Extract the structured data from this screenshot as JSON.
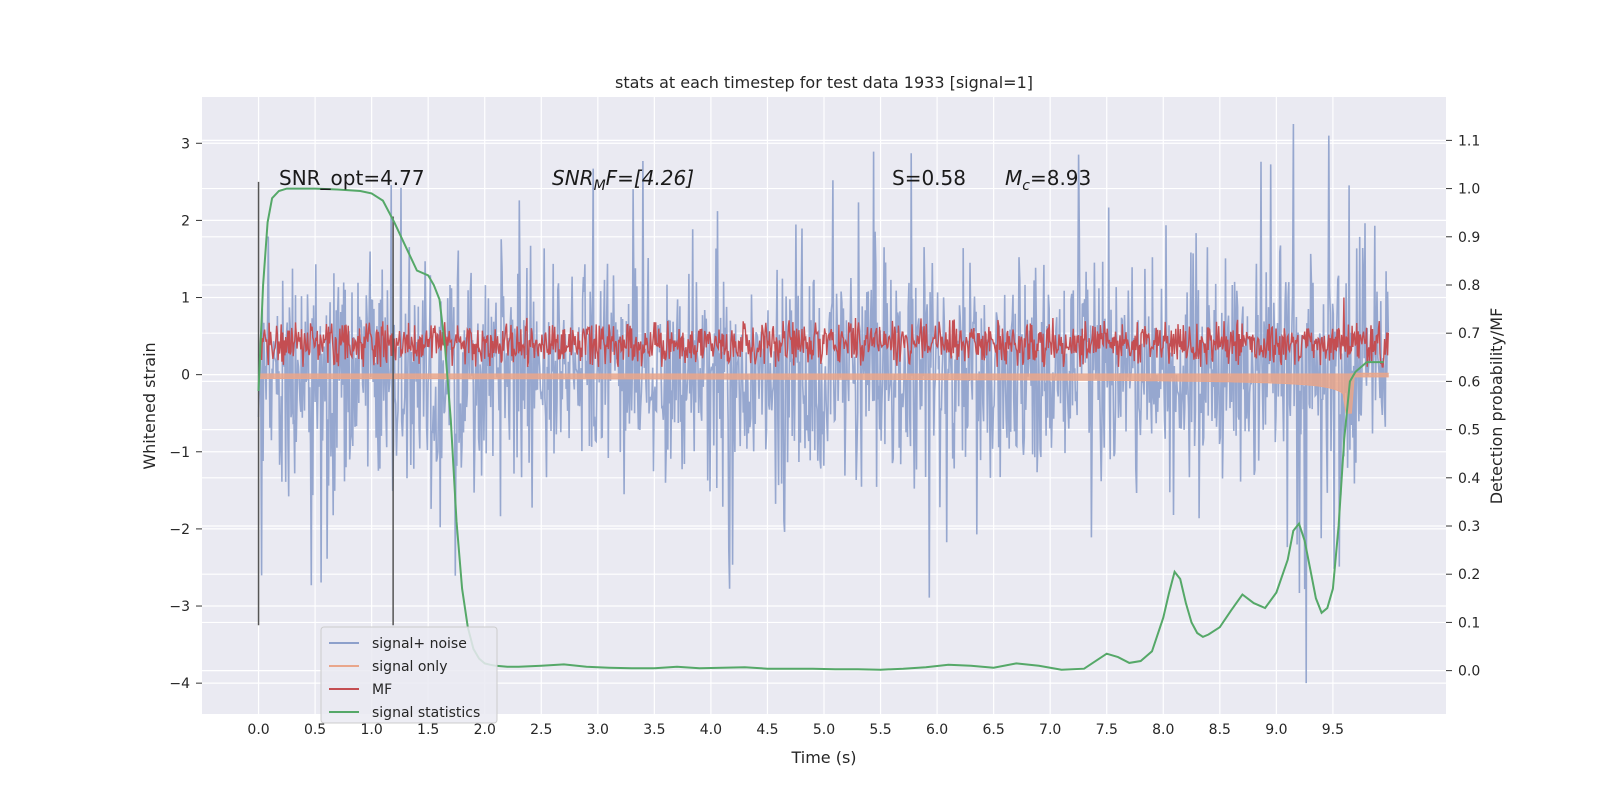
{
  "chart_data": {
    "type": "line",
    "title": "stats at each timestep for test data 1933 [signal=1]",
    "xlabel": "Time (s)",
    "ylabel_left": "Whitened strain",
    "ylabel_right": "Detection probability/MF",
    "xlim": [
      -0.5,
      10.5
    ],
    "ylim_left": [
      -4.4,
      3.6
    ],
    "ylim_right": [
      -0.09,
      1.19
    ],
    "x_ticks": [
      "0.0",
      "0.5",
      "1.0",
      "1.5",
      "2.0",
      "2.5",
      "3.0",
      "3.5",
      "4.0",
      "4.5",
      "5.0",
      "5.5",
      "6.0",
      "6.5",
      "7.0",
      "7.5",
      "8.0",
      "8.5",
      "9.0",
      "9.5"
    ],
    "y_ticks_left": [
      "3",
      "2",
      "1",
      "0",
      "−1",
      "−2",
      "−3",
      "−4"
    ],
    "y_ticks_right": [
      "1.1",
      "1.0",
      "0.9",
      "0.8",
      "0.7",
      "0.6",
      "0.5",
      "0.4",
      "0.3",
      "0.2",
      "0.1",
      "0.0"
    ],
    "grid": true,
    "legend_position": "lower-left",
    "annotations": {
      "snr_opt": "SNR_opt=4.77",
      "snr_mf_base": "SNR",
      "snr_mf_sub": "M",
      "snr_mf_rest": "F=[4.26]",
      "s_value": "S=0.58",
      "mc_base": "M",
      "mc_sub": "c",
      "mc_rest": "=8.93"
    },
    "vertical_markers": [
      {
        "x": 0.0,
        "y_range": [
          -3.25,
          2.5
        ],
        "color": "#555555"
      },
      {
        "x": 1.19,
        "y_range": [
          -3.25,
          2.05
        ],
        "color": "#555555"
      }
    ],
    "series": [
      {
        "name": "signal+ noise",
        "axis": "left",
        "color": "#8da0cb",
        "t_range": [
          0.0,
          9.99
        ],
        "band": [
          -1.1,
          1.05
        ],
        "extreme_low": -4.0,
        "extreme_high": 3.25
      },
      {
        "name": "signal only",
        "axis": "left",
        "color": "#e9a68b",
        "t_range": [
          0.0,
          9.99
        ],
        "amplitude_start": 0.03,
        "amplitude_end_low": -0.6,
        "peak_time": 9.67
      },
      {
        "name": "MF",
        "axis": "left",
        "color": "#c44e52",
        "t_range": [
          0.0,
          9.99
        ],
        "band": [
          0.1,
          0.7
        ],
        "max": 1.0
      },
      {
        "name": "signal statistics",
        "axis": "right",
        "color": "#55a868",
        "x": [
          0.0,
          0.04,
          0.08,
          0.12,
          0.18,
          0.25,
          0.35,
          0.5,
          0.7,
          0.9,
          1.0,
          1.1,
          1.2,
          1.3,
          1.4,
          1.5,
          1.55,
          1.6,
          1.65,
          1.7,
          1.75,
          1.8,
          1.85,
          1.9,
          1.95,
          2.0,
          2.05,
          2.1,
          2.2,
          2.3,
          2.5,
          2.7,
          2.9,
          3.1,
          3.3,
          3.5,
          3.7,
          3.9,
          4.1,
          4.3,
          4.5,
          4.7,
          4.9,
          5.1,
          5.3,
          5.5,
          5.7,
          5.9,
          6.1,
          6.3,
          6.5,
          6.7,
          6.9,
          7.1,
          7.3,
          7.5,
          7.6,
          7.7,
          7.8,
          7.9,
          8.0,
          8.05,
          8.1,
          8.15,
          8.2,
          8.25,
          8.3,
          8.35,
          8.4,
          8.5,
          8.6,
          8.7,
          8.8,
          8.9,
          9.0,
          9.1,
          9.15,
          9.2,
          9.25,
          9.3,
          9.35,
          9.4,
          9.45,
          9.5,
          9.55,
          9.6,
          9.65,
          9.7,
          9.75,
          9.8,
          9.85,
          9.9,
          9.95
        ],
        "y": [
          0.58,
          0.8,
          0.93,
          0.98,
          0.995,
          1.0,
          1.0,
          1.0,
          0.998,
          0.995,
          0.99,
          0.975,
          0.93,
          0.88,
          0.83,
          0.82,
          0.8,
          0.77,
          0.67,
          0.52,
          0.31,
          0.17,
          0.09,
          0.045,
          0.025,
          0.015,
          0.012,
          0.01,
          0.008,
          0.008,
          0.01,
          0.013,
          0.008,
          0.006,
          0.005,
          0.005,
          0.008,
          0.005,
          0.006,
          0.007,
          0.004,
          0.004,
          0.004,
          0.003,
          0.003,
          0.002,
          0.004,
          0.007,
          0.012,
          0.01,
          0.006,
          0.015,
          0.01,
          0.002,
          0.004,
          0.035,
          0.028,
          0.016,
          0.02,
          0.04,
          0.11,
          0.16,
          0.205,
          0.19,
          0.14,
          0.1,
          0.078,
          0.07,
          0.075,
          0.09,
          0.125,
          0.158,
          0.14,
          0.13,
          0.162,
          0.23,
          0.29,
          0.305,
          0.27,
          0.21,
          0.15,
          0.12,
          0.13,
          0.17,
          0.3,
          0.48,
          0.6,
          0.62,
          0.63,
          0.64,
          0.64,
          0.64,
          0.64
        ]
      }
    ]
  }
}
